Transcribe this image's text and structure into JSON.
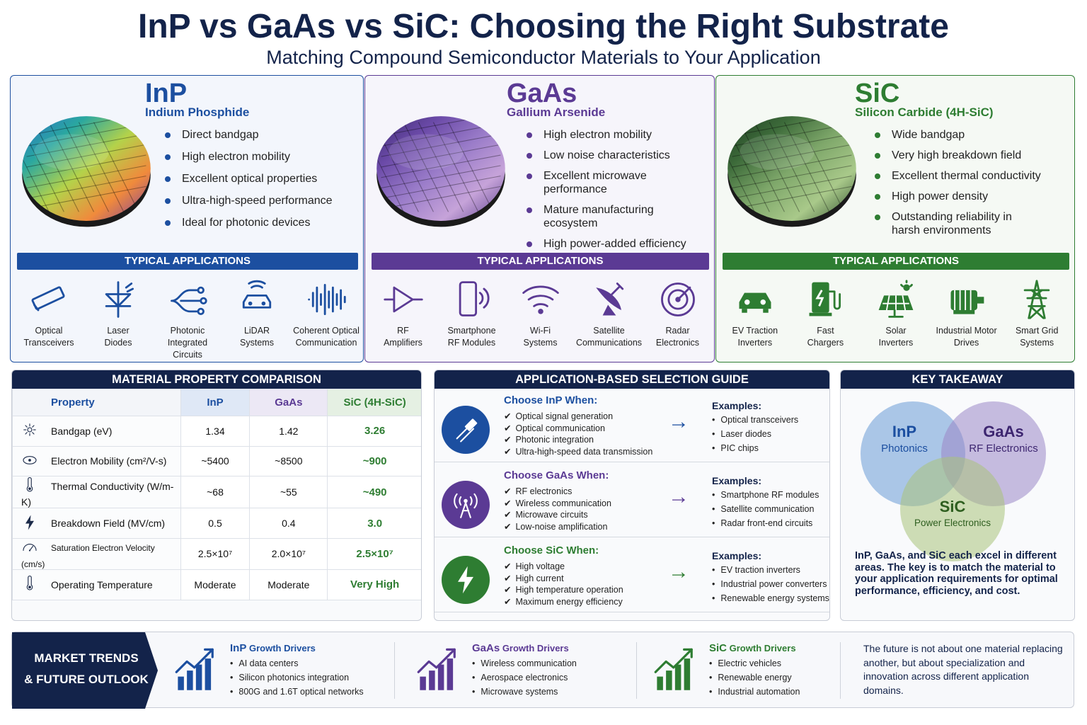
{
  "header": {
    "title": "InP vs GaAs vs SiC: Choosing the Right Substrate",
    "subtitle": "Matching Compound Semiconductor Materials to Your Application"
  },
  "materials": [
    {
      "symbol": "InP",
      "name": "Indium Phosphide",
      "color": "#1c4fa0",
      "features": [
        "Direct bandgap",
        "High electron mobility",
        "Excellent optical properties",
        "Ultra-high-speed performance",
        "Ideal for photonic devices"
      ],
      "apps_title": "TYPICAL APPLICATIONS",
      "apps": [
        "Optical\nTransceivers",
        "Laser\nDiodes",
        "Photonic\nIntegrated Circuits",
        "LiDAR\nSystems",
        "Coherent Optical\nCommunication"
      ]
    },
    {
      "symbol": "GaAs",
      "name": "Gallium Arsenide",
      "color": "#5b3a94",
      "features": [
        "High electron mobility",
        "Low noise characteristics",
        "Excellent microwave\nperformance",
        "Mature manufacturing\necosystem",
        "High power-added efficiency"
      ],
      "apps_title": "TYPICAL APPLICATIONS",
      "apps": [
        "RF\nAmplifiers",
        "Smartphone\nRF Modules",
        "Wi-Fi\nSystems",
        "Satellite\nCommunications",
        "Radar\nElectronics"
      ]
    },
    {
      "symbol": "SiC",
      "name": "Silicon Carbide (4H-SiC)",
      "color": "#2e7d32",
      "features": [
        "Wide bandgap",
        "Very high breakdown field",
        "Excellent thermal conductivity",
        "High power density",
        "Outstanding reliability in\nharsh environments"
      ],
      "apps_title": "TYPICAL APPLICATIONS",
      "apps": [
        "EV Traction\nInverters",
        "Fast\nChargers",
        "Solar\nInverters",
        "Industrial Motor\nDrives",
        "Smart Grid\nSystems"
      ]
    }
  ],
  "comparison": {
    "title": "MATERIAL PROPERTY COMPARISON",
    "headers": [
      "Property",
      "InP",
      "GaAs",
      "SiC (4H-SiC)"
    ],
    "rows": [
      {
        "icon": "sun-icon",
        "property": "Bandgap (eV)",
        "inp": "1.34",
        "gaas": "1.42",
        "sic": "3.26"
      },
      {
        "icon": "atom-icon",
        "property": "Electron Mobility (cm²/V-s)",
        "inp": "~5400",
        "gaas": "~8500",
        "sic": "~900"
      },
      {
        "icon": "thermometer-icon",
        "property": "Thermal Conductivity (W/m-K)",
        "inp": "~68",
        "gaas": "~55",
        "sic": "~490"
      },
      {
        "icon": "lightning-icon",
        "property": "Breakdown Field (MV/cm)",
        "inp": "0.5",
        "gaas": "0.4",
        "sic": "3.0"
      },
      {
        "icon": "gauge-icon",
        "property": "Saturation Electron Velocity (cm/s)",
        "inp": "2.5×10⁷",
        "gaas": "2.0×10⁷",
        "sic": "2.5×10⁷"
      },
      {
        "icon": "thermometer-icon",
        "property": "Operating Temperature",
        "inp": "Moderate",
        "gaas": "Moderate",
        "sic": "Very High"
      }
    ]
  },
  "guide": {
    "title": "APPLICATION-BASED SELECTION GUIDE",
    "items": [
      {
        "title": "Choose InP When:",
        "color": "#1c4fa0",
        "icon": "fiber-icon",
        "checks": [
          "Optical signal generation",
          "Optical communication",
          "Photonic integration",
          "Ultra-high-speed data transmission"
        ],
        "examples_label": "Examples:",
        "examples": [
          "Optical transceivers",
          "Laser diodes",
          "PIC chips"
        ]
      },
      {
        "title": "Choose GaAs When:",
        "color": "#5b3a94",
        "icon": "antenna-icon",
        "checks": [
          "RF electronics",
          "Wireless communication",
          "Microwave circuits",
          "Low-noise amplification"
        ],
        "examples_label": "Examples:",
        "examples": [
          "Smartphone RF modules",
          "Satellite communication",
          "Radar front-end circuits"
        ]
      },
      {
        "title": "Choose SiC When:",
        "color": "#2e7d32",
        "icon": "lightning-icon",
        "checks": [
          "High voltage",
          "High current",
          "High temperature operation",
          "Maximum energy efficiency"
        ],
        "examples_label": "Examples:",
        "examples": [
          "EV traction inverters",
          "Industrial power converters",
          "Renewable energy systems"
        ]
      }
    ]
  },
  "takeaway": {
    "title": "KEY TAKEAWAY",
    "venn": [
      {
        "label": "InP",
        "sub": "Photonics",
        "color": "#6a9ad6"
      },
      {
        "label": "GaAs",
        "sub": "RF Electronics",
        "color": "#9b86c6"
      },
      {
        "label": "SiC",
        "sub": "Power Electronics",
        "color": "#a9c27a"
      }
    ],
    "text": "InP, GaAs, and SiC each excel in different areas. The key is to match the material to your application requirements for optimal performance, efficiency, and cost."
  },
  "market": {
    "title": "MARKET TRENDS\n& FUTURE OUTLOOK",
    "drivers": [
      {
        "material": "InP",
        "suffix": "Growth Drivers",
        "color": "#1c4fa0",
        "items": [
          "AI data centers",
          "Silicon photonics integration",
          "800G and 1.6T optical networks"
        ]
      },
      {
        "material": "GaAs",
        "suffix": "Growth Drivers",
        "color": "#5b3a94",
        "items": [
          "Wireless communication",
          "Aerospace electronics",
          "Microwave systems"
        ]
      },
      {
        "material": "SiC",
        "suffix": "Growth Drivers",
        "color": "#2e7d32",
        "items": [
          "Electric vehicles",
          "Renewable energy",
          "Industrial automation"
        ]
      }
    ],
    "outlook": "The future is not about one material replacing another, but about specialization and innovation across different application domains."
  }
}
